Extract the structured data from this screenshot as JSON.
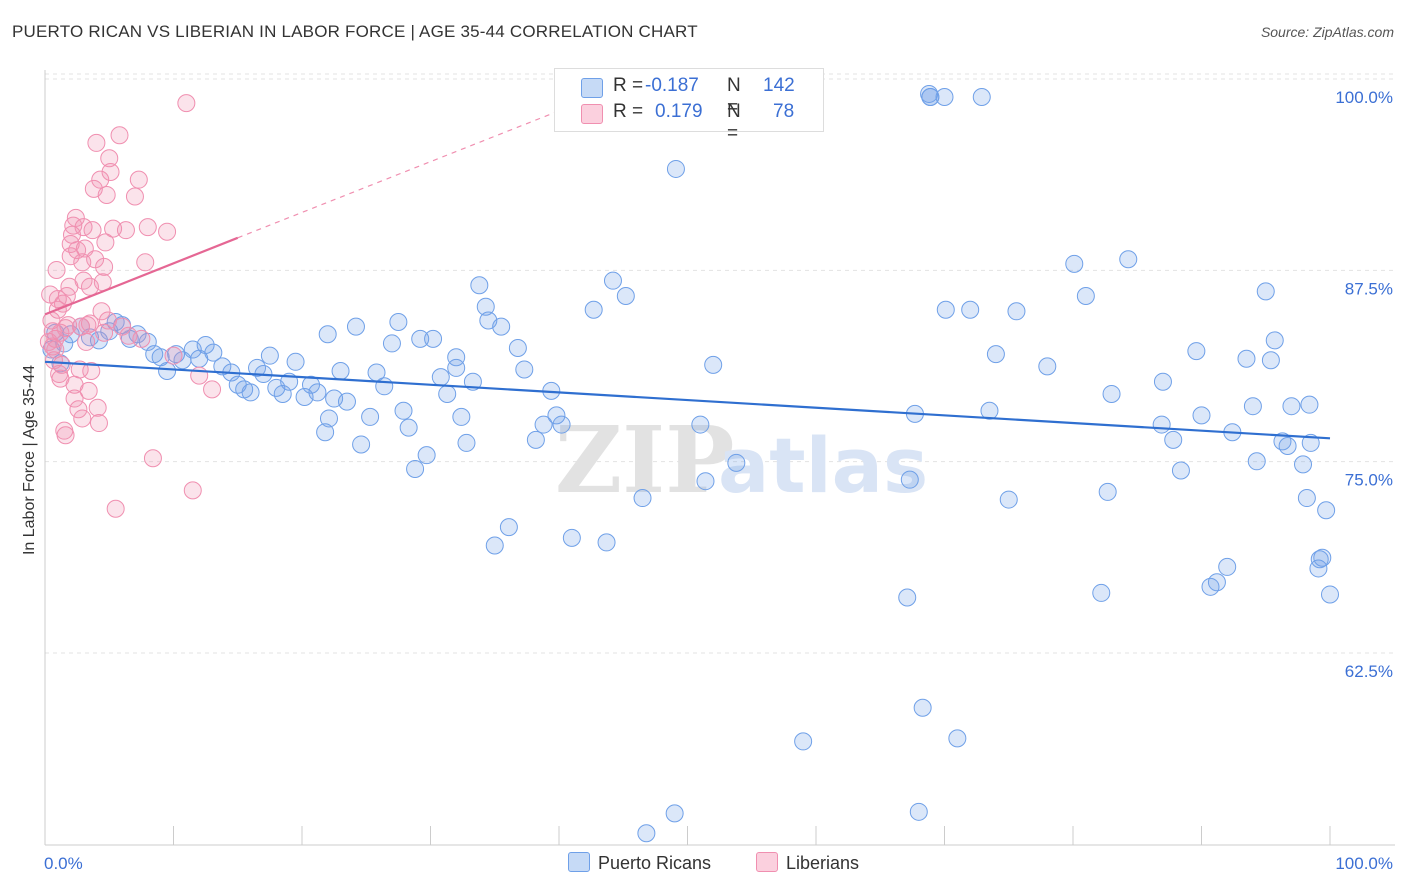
{
  "title": "PUERTO RICAN VS LIBERIAN IN LABOR FORCE | AGE 35-44 CORRELATION CHART",
  "source": "Source: ZipAtlas.com",
  "legend": {
    "rows": [
      {
        "r_label": "R =",
        "r_value": "-0.187",
        "n_label": "N =",
        "n_value": "142",
        "color": "#6fa0e8"
      },
      {
        "r_label": "R =",
        "r_value": "0.179",
        "n_label": "N =",
        "n_value": "78",
        "color": "#f08fb0"
      }
    ],
    "bottom": [
      {
        "label": "Puerto Ricans",
        "color": "#6fa0e8"
      },
      {
        "label": "Liberians",
        "color": "#f08fb0"
      }
    ]
  },
  "chart_data": {
    "type": "scatter",
    "title": "PUERTO RICAN VS LIBERIAN IN LABOR FORCE | AGE 35-44 CORRELATION CHART",
    "xlabel": "",
    "ylabel": "In Labor Force | Age 35-44",
    "xlim": [
      0,
      100
    ],
    "ylim": [
      50,
      101.5
    ],
    "x_tick_labels": [
      "0.0%",
      "100.0%"
    ],
    "y_ticks": [
      62.5,
      75.0,
      87.5,
      100.0
    ],
    "y_tick_labels": [
      "62.5%",
      "75.0%",
      "87.5%",
      "100.0%"
    ],
    "watermark": "ZIPatlas",
    "series": [
      {
        "name": "Puerto Ricans",
        "color": "#6fa0e8",
        "trend": {
          "x": [
            0,
            100
          ],
          "y": [
            82.7,
            77.7
          ]
        },
        "points": [
          [
            0.5,
            83.5
          ],
          [
            0.8,
            84.6
          ],
          [
            1.2,
            82.6
          ],
          [
            1.5,
            83.9
          ],
          [
            2.0,
            84.5
          ],
          [
            2.8,
            85.0
          ],
          [
            3.5,
            84.3
          ],
          [
            4.2,
            84.1
          ],
          [
            5.0,
            84.7
          ],
          [
            5.5,
            85.3
          ],
          [
            6.0,
            85.1
          ],
          [
            6.6,
            84.2
          ],
          [
            7.2,
            84.5
          ],
          [
            8.0,
            84.0
          ],
          [
            8.5,
            83.2
          ],
          [
            9.0,
            83.0
          ],
          [
            9.5,
            82.1
          ],
          [
            10.2,
            83.2
          ],
          [
            10.7,
            82.8
          ],
          [
            11.5,
            83.5
          ],
          [
            12.0,
            82.9
          ],
          [
            12.5,
            83.8
          ],
          [
            13.1,
            83.3
          ],
          [
            13.8,
            82.4
          ],
          [
            14.5,
            82.0
          ],
          [
            15.0,
            81.2
          ],
          [
            15.5,
            80.9
          ],
          [
            16.0,
            80.7
          ],
          [
            16.5,
            82.3
          ],
          [
            17.0,
            81.9
          ],
          [
            17.5,
            83.1
          ],
          [
            18.0,
            81.0
          ],
          [
            18.5,
            80.6
          ],
          [
            19.0,
            81.4
          ],
          [
            19.5,
            82.7
          ],
          [
            20.2,
            80.4
          ],
          [
            20.7,
            81.2
          ],
          [
            21.2,
            80.7
          ],
          [
            21.8,
            78.1
          ],
          [
            22.1,
            79.0
          ],
          [
            22.5,
            80.3
          ],
          [
            23.0,
            82.1
          ],
          [
            23.5,
            80.1
          ],
          [
            24.2,
            85.0
          ],
          [
            24.6,
            77.3
          ],
          [
            25.3,
            79.1
          ],
          [
            25.8,
            82.0
          ],
          [
            26.4,
            81.1
          ],
          [
            27.0,
            83.9
          ],
          [
            27.5,
            85.3
          ],
          [
            27.9,
            79.5
          ],
          [
            28.3,
            78.4
          ],
          [
            28.8,
            75.7
          ],
          [
            29.2,
            84.2
          ],
          [
            29.7,
            76.6
          ],
          [
            30.2,
            84.2
          ],
          [
            30.8,
            81.7
          ],
          [
            31.3,
            80.6
          ],
          [
            32.0,
            82.3
          ],
          [
            32.4,
            79.1
          ],
          [
            32.8,
            77.4
          ],
          [
            33.3,
            81.4
          ],
          [
            33.8,
            87.7
          ],
          [
            34.3,
            86.3
          ],
          [
            35.0,
            70.7
          ],
          [
            35.5,
            85.0
          ],
          [
            36.1,
            71.9
          ],
          [
            36.8,
            83.6
          ],
          [
            37.3,
            82.2
          ],
          [
            38.2,
            77.6
          ],
          [
            38.8,
            78.6
          ],
          [
            39.4,
            80.8
          ],
          [
            39.8,
            79.2
          ],
          [
            40.2,
            78.6
          ],
          [
            41.0,
            71.2
          ],
          [
            42.7,
            86.1
          ],
          [
            43.7,
            70.9
          ],
          [
            44.2,
            88.0
          ],
          [
            45.2,
            87.0
          ],
          [
            46.5,
            73.8
          ],
          [
            47.7,
            98.7
          ],
          [
            49.1,
            95.3
          ],
          [
            51.0,
            78.6
          ],
          [
            51.4,
            74.9
          ],
          [
            53.8,
            76.1
          ],
          [
            55.0,
            100.1
          ],
          [
            57.0,
            100.1
          ],
          [
            67.1,
            67.3
          ],
          [
            67.7,
            79.3
          ],
          [
            68.3,
            60.1
          ],
          [
            68.9,
            100.0
          ],
          [
            68.8,
            100.2
          ],
          [
            68.9,
            100.0
          ],
          [
            67.3,
            75.0
          ],
          [
            70.1,
            86.1
          ],
          [
            71.0,
            58.1
          ],
          [
            72.0,
            86.1
          ],
          [
            72.9,
            100.0
          ],
          [
            73.5,
            79.5
          ],
          [
            74.0,
            83.2
          ],
          [
            75.0,
            73.7
          ],
          [
            75.6,
            86.0
          ],
          [
            78.0,
            82.4
          ],
          [
            80.1,
            89.1
          ],
          [
            81.0,
            87.0
          ],
          [
            82.2,
            67.6
          ],
          [
            82.7,
            74.2
          ],
          [
            83.0,
            80.6
          ],
          [
            84.3,
            89.4
          ],
          [
            86.9,
            78.6
          ],
          [
            87.0,
            81.4
          ],
          [
            87.8,
            77.6
          ],
          [
            88.4,
            75.6
          ],
          [
            89.6,
            83.4
          ],
          [
            90.0,
            79.2
          ],
          [
            90.7,
            68.0
          ],
          [
            91.2,
            68.3
          ],
          [
            92.0,
            69.3
          ],
          [
            92.4,
            78.1
          ],
          [
            93.5,
            82.9
          ],
          [
            94.0,
            79.8
          ],
          [
            94.3,
            76.2
          ],
          [
            95.0,
            87.3
          ],
          [
            95.4,
            82.8
          ],
          [
            95.7,
            84.1
          ],
          [
            96.3,
            77.5
          ],
          [
            96.7,
            77.2
          ],
          [
            97.0,
            79.8
          ],
          [
            97.9,
            76.0
          ],
          [
            98.2,
            73.8
          ],
          [
            98.5,
            77.4
          ],
          [
            99.1,
            69.2
          ],
          [
            99.4,
            69.9
          ],
          [
            99.7,
            73.0
          ],
          [
            100.0,
            67.5
          ],
          [
            99.2,
            69.8
          ],
          [
            98.4,
            79.9
          ],
          [
            52.0,
            82.5
          ],
          [
            34.5,
            85.4
          ],
          [
            32.0,
            83.0
          ],
          [
            22.0,
            84.5
          ],
          [
            49.0,
            53.2
          ],
          [
            68.0,
            53.3
          ],
          [
            59.0,
            57.9
          ],
          [
            46.8,
            51.9
          ],
          [
            70.0,
            100.0
          ]
        ]
      },
      {
        "name": "Liberians",
        "color": "#f08fb0",
        "trend": {
          "x": [
            0,
            15
          ],
          "y": [
            85.8,
            90.8
          ]
        },
        "trend_ext": {
          "x": [
            15,
            100
          ],
          "y": [
            90.8,
            119.0
          ]
        },
        "points": [
          [
            0.4,
            87.1
          ],
          [
            0.5,
            85.4
          ],
          [
            0.6,
            84.7
          ],
          [
            0.6,
            83.7
          ],
          [
            0.7,
            82.8
          ],
          [
            0.8,
            84.2
          ],
          [
            0.9,
            88.7
          ],
          [
            1.0,
            86.1
          ],
          [
            1.1,
            81.9
          ],
          [
            1.2,
            84.6
          ],
          [
            1.3,
            82.5
          ],
          [
            1.4,
            86.5
          ],
          [
            1.5,
            78.2
          ],
          [
            1.6,
            77.9
          ],
          [
            1.7,
            87.0
          ],
          [
            1.8,
            85.1
          ],
          [
            1.9,
            87.6
          ],
          [
            2.0,
            89.6
          ],
          [
            2.1,
            91.0
          ],
          [
            2.2,
            91.6
          ],
          [
            2.3,
            80.3
          ],
          [
            2.4,
            92.1
          ],
          [
            2.5,
            90.0
          ],
          [
            2.6,
            79.6
          ],
          [
            2.7,
            82.2
          ],
          [
            2.8,
            85.0
          ],
          [
            2.9,
            89.2
          ],
          [
            3.0,
            91.5
          ],
          [
            3.1,
            90.1
          ],
          [
            3.2,
            84.0
          ],
          [
            3.3,
            85.1
          ],
          [
            3.4,
            80.8
          ],
          [
            3.5,
            87.6
          ],
          [
            3.6,
            82.1
          ],
          [
            3.7,
            91.3
          ],
          [
            3.8,
            94.0
          ],
          [
            3.9,
            89.4
          ],
          [
            4.0,
            97.0
          ],
          [
            4.1,
            79.7
          ],
          [
            4.2,
            78.7
          ],
          [
            4.3,
            94.6
          ],
          [
            4.4,
            86.0
          ],
          [
            4.5,
            87.9
          ],
          [
            4.6,
            88.9
          ],
          [
            4.7,
            90.5
          ],
          [
            4.8,
            93.6
          ],
          [
            4.9,
            85.4
          ],
          [
            5.0,
            96.0
          ],
          [
            5.1,
            95.1
          ],
          [
            5.3,
            91.4
          ],
          [
            5.5,
            73.1
          ],
          [
            5.8,
            97.5
          ],
          [
            6.0,
            85.0
          ],
          [
            6.3,
            91.3
          ],
          [
            6.5,
            84.4
          ],
          [
            7.0,
            93.5
          ],
          [
            7.3,
            94.6
          ],
          [
            7.5,
            84.2
          ],
          [
            7.8,
            89.2
          ],
          [
            8.0,
            91.5
          ],
          [
            8.4,
            76.4
          ],
          [
            9.5,
            91.2
          ],
          [
            10.0,
            83.1
          ],
          [
            11.0,
            99.6
          ],
          [
            11.5,
            74.3
          ],
          [
            12.0,
            81.8
          ],
          [
            13.0,
            80.9
          ],
          [
            1.6,
            84.9
          ],
          [
            0.3,
            84.0
          ],
          [
            0.8,
            83.5
          ],
          [
            1.2,
            81.6
          ],
          [
            2.3,
            81.2
          ],
          [
            2.9,
            79.0
          ],
          [
            3.5,
            85.2
          ],
          [
            4.6,
            84.6
          ],
          [
            1.0,
            86.8
          ],
          [
            2.0,
            90.4
          ],
          [
            3.0,
            88.0
          ]
        ]
      }
    ]
  }
}
